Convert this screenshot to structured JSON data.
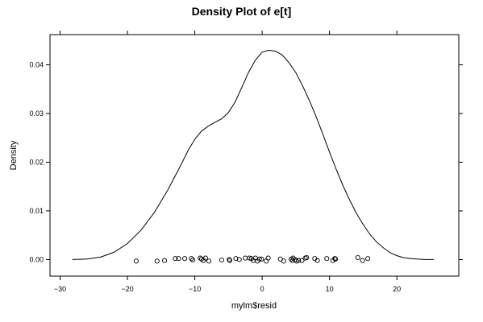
{
  "chart_data": {
    "type": "line",
    "title": "Density Plot of e[t]",
    "xlabel": "mylm$resid",
    "ylabel": "Density",
    "xlim": [
      -31.5,
      29.2
    ],
    "ylim": [
      -0.0034,
      0.0462
    ],
    "x_ticks": [
      -30,
      -20,
      -10,
      0,
      10,
      20
    ],
    "x_tick_labels": [
      "−30",
      "−20",
      "−10",
      "0",
      "10",
      "20"
    ],
    "y_ticks": [
      0.0,
      0.01,
      0.02,
      0.03,
      0.04
    ],
    "y_tick_labels": [
      "0.00",
      "0.01",
      "0.02",
      "0.03",
      "0.04"
    ],
    "grid": false,
    "series": [
      {
        "x": [
          -28.2,
          -26,
          -24,
          -22,
          -20,
          -18,
          -16,
          -14,
          -12,
          -11,
          -10,
          -9,
          -8,
          -7,
          -6,
          -5,
          -4,
          -3,
          -2,
          -1,
          0,
          1,
          2,
          3,
          4,
          5,
          6,
          7,
          8,
          9,
          10,
          11,
          12,
          13,
          14,
          15,
          16,
          17,
          18,
          19,
          20,
          21,
          22,
          23,
          24,
          25.5
        ],
        "y": [
          0.0,
          0.0001,
          0.0005,
          0.0015,
          0.0033,
          0.006,
          0.0097,
          0.0143,
          0.0196,
          0.0224,
          0.0247,
          0.0264,
          0.0274,
          0.0282,
          0.0289,
          0.0302,
          0.0324,
          0.0354,
          0.0385,
          0.041,
          0.0426,
          0.043,
          0.0428,
          0.042,
          0.0404,
          0.0384,
          0.0357,
          0.0327,
          0.0294,
          0.0258,
          0.0221,
          0.0185,
          0.0152,
          0.0122,
          0.0095,
          0.0072,
          0.0052,
          0.0036,
          0.0024,
          0.0014,
          0.0008,
          0.0004,
          0.0002,
          0.0001,
          0.0,
          0.0
        ]
      },
      {
        "type": "scatter",
        "x": [
          -18.7,
          -15.6,
          -14.5,
          -12.9,
          -12.4,
          -11.5,
          -10.5,
          -10.3,
          -9.2,
          -9.0,
          -8.7,
          -8.4,
          -7.9,
          -6.0,
          -4.9,
          -4.8,
          -3.9,
          -3.4,
          -2.5,
          -1.9,
          -1.6,
          -1.3,
          -1.0,
          -0.7,
          -0.4,
          -0.1,
          0.6,
          0.9,
          2.7,
          3.2,
          4.3,
          4.5,
          4.6,
          4.9,
          5.1,
          5.4,
          5.9,
          6.4,
          6.6,
          7.8,
          8.2,
          9.6,
          10.5,
          10.8,
          10.9,
          14.2,
          14.9,
          15.7
        ],
        "y": [
          -0.0003,
          -0.0003,
          -0.0002,
          0.0002,
          0.0002,
          0.0002,
          0.0002,
          -0.0001,
          0.0003,
          0.0001,
          -0.0002,
          0.0003,
          -0.0003,
          -0.0001,
          0.0,
          -0.0002,
          0.0002,
          0.0,
          0.0003,
          0.0003,
          0.0002,
          -0.0002,
          0.0003,
          -0.0003,
          0.0001,
          0.0001,
          -0.0003,
          0.0003,
          0.0001,
          -0.0003,
          0.0001,
          -0.0002,
          0.0003,
          0.0,
          -0.0003,
          -0.0002,
          -0.0002,
          0.0003,
          0.0004,
          0.0002,
          -0.0002,
          0.0002,
          -0.0002,
          0.0002,
          0.0001,
          0.0004,
          -0.0002,
          0.0002
        ]
      }
    ]
  }
}
